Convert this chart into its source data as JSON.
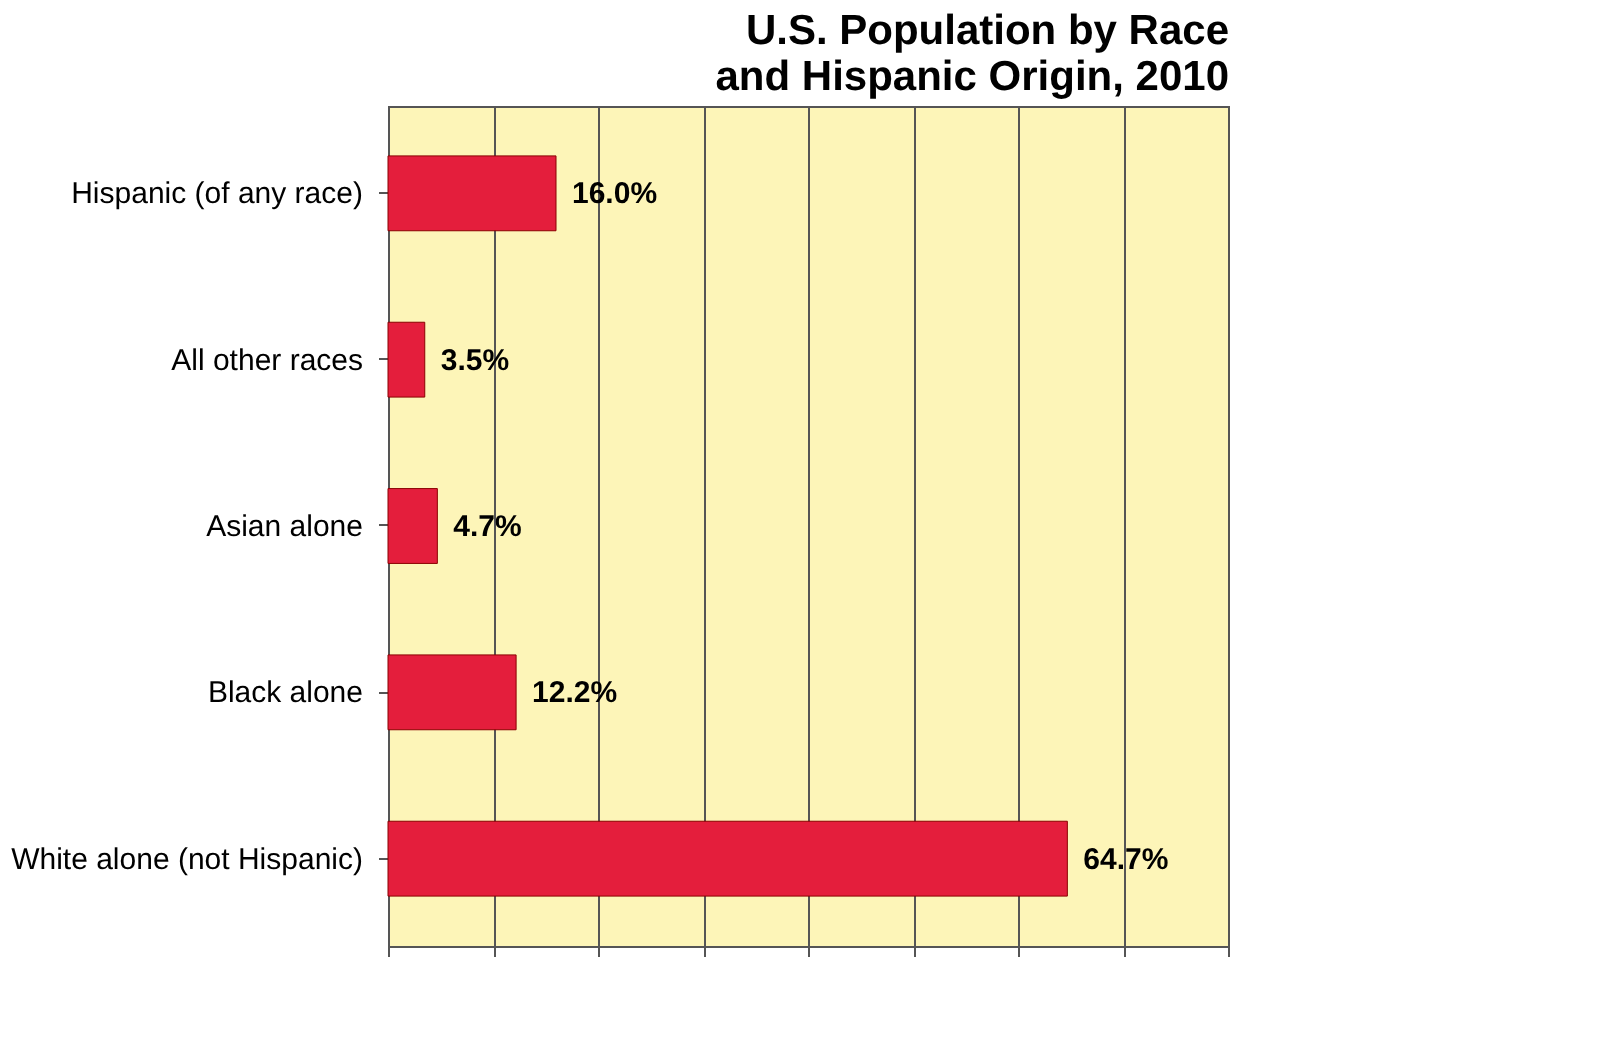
{
  "chart_data": {
    "type": "bar",
    "orientation": "horizontal",
    "title": "U.S. Population by Race and Hispanic Origin, 2010",
    "categories": [
      "Hispanic (of any race)",
      "All other races",
      "Asian alone",
      "Black alone",
      "White alone (not Hispanic)"
    ],
    "values": [
      16.0,
      3.5,
      4.7,
      12.2,
      64.7
    ],
    "color": "#e41e3c",
    "value_labels": [
      "16.0%",
      "3.5%",
      "4.7%",
      "12.2%",
      "64.7%"
    ],
    "xlim": [
      0,
      80
    ],
    "xticks": [
      {
        "value": 0,
        "label": null
      },
      {
        "value": 10,
        "label": null
      },
      {
        "value": 20,
        "label": null
      },
      {
        "value": 30,
        "label": null
      },
      {
        "value": 40,
        "label": null
      },
      {
        "value": 50,
        "label": null
      },
      {
        "value": 60,
        "label": null
      },
      {
        "value": 70,
        "label": null
      },
      {
        "value": 80,
        "label": null
      }
    ],
    "grid": "x",
    "tick_labels": "y"
  }
}
